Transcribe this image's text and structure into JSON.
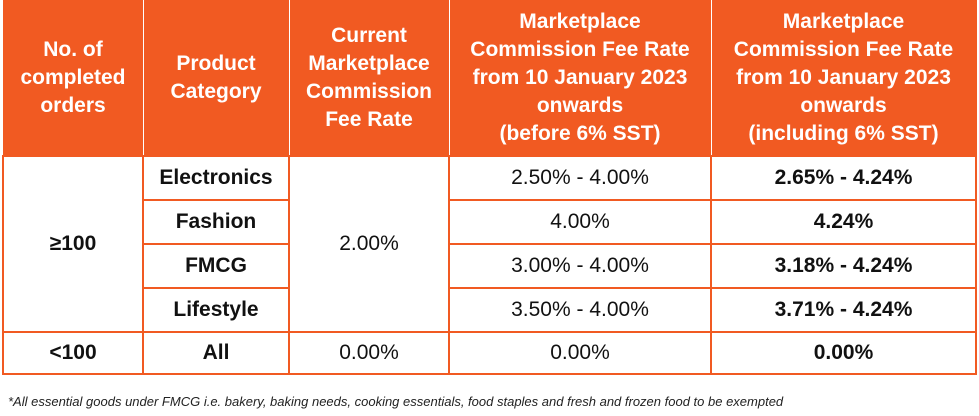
{
  "headers": [
    [
      "No. of",
      "completed",
      "orders"
    ],
    [
      "Product",
      "Category"
    ],
    [
      "Current",
      "Marketplace",
      "Commission",
      "Fee Rate"
    ],
    [
      "Marketplace",
      "Commission Fee Rate",
      "from 10 January 2023",
      "onwards",
      "(before 6% SST)"
    ],
    [
      "Marketplace",
      "Commission Fee Rate",
      "from 10 January 2023",
      "onwards",
      "(including 6% SST)"
    ]
  ],
  "groups": {
    "ge100": {
      "orders": "≥100",
      "current_rate": "2.00%",
      "rows": [
        {
          "category": "Electronics",
          "new_rate": "2.50% - 4.00%",
          "new_rate_sst": "2.65% - 4.24%"
        },
        {
          "category": "Fashion",
          "new_rate": "4.00%",
          "new_rate_sst": "4.24%"
        },
        {
          "category": "FMCG",
          "new_rate": "3.00% - 4.00%",
          "new_rate_sst": "3.18% - 4.24%"
        },
        {
          "category": "Lifestyle",
          "new_rate": "3.50% - 4.00%",
          "new_rate_sst": "3.71% - 4.24%"
        }
      ]
    },
    "lt100": {
      "orders": "<100",
      "category": "All",
      "current_rate": "0.00%",
      "new_rate": "0.00%",
      "new_rate_sst": "0.00%"
    }
  },
  "footnote": "*All essential goods under FMCG i.e. bakery, baking needs, cooking essentials, food staples and fresh and frozen food to be exempted",
  "colors": {
    "header_bg": "#f15a22",
    "header_text": "#ffffff",
    "border": "#f15a22"
  }
}
